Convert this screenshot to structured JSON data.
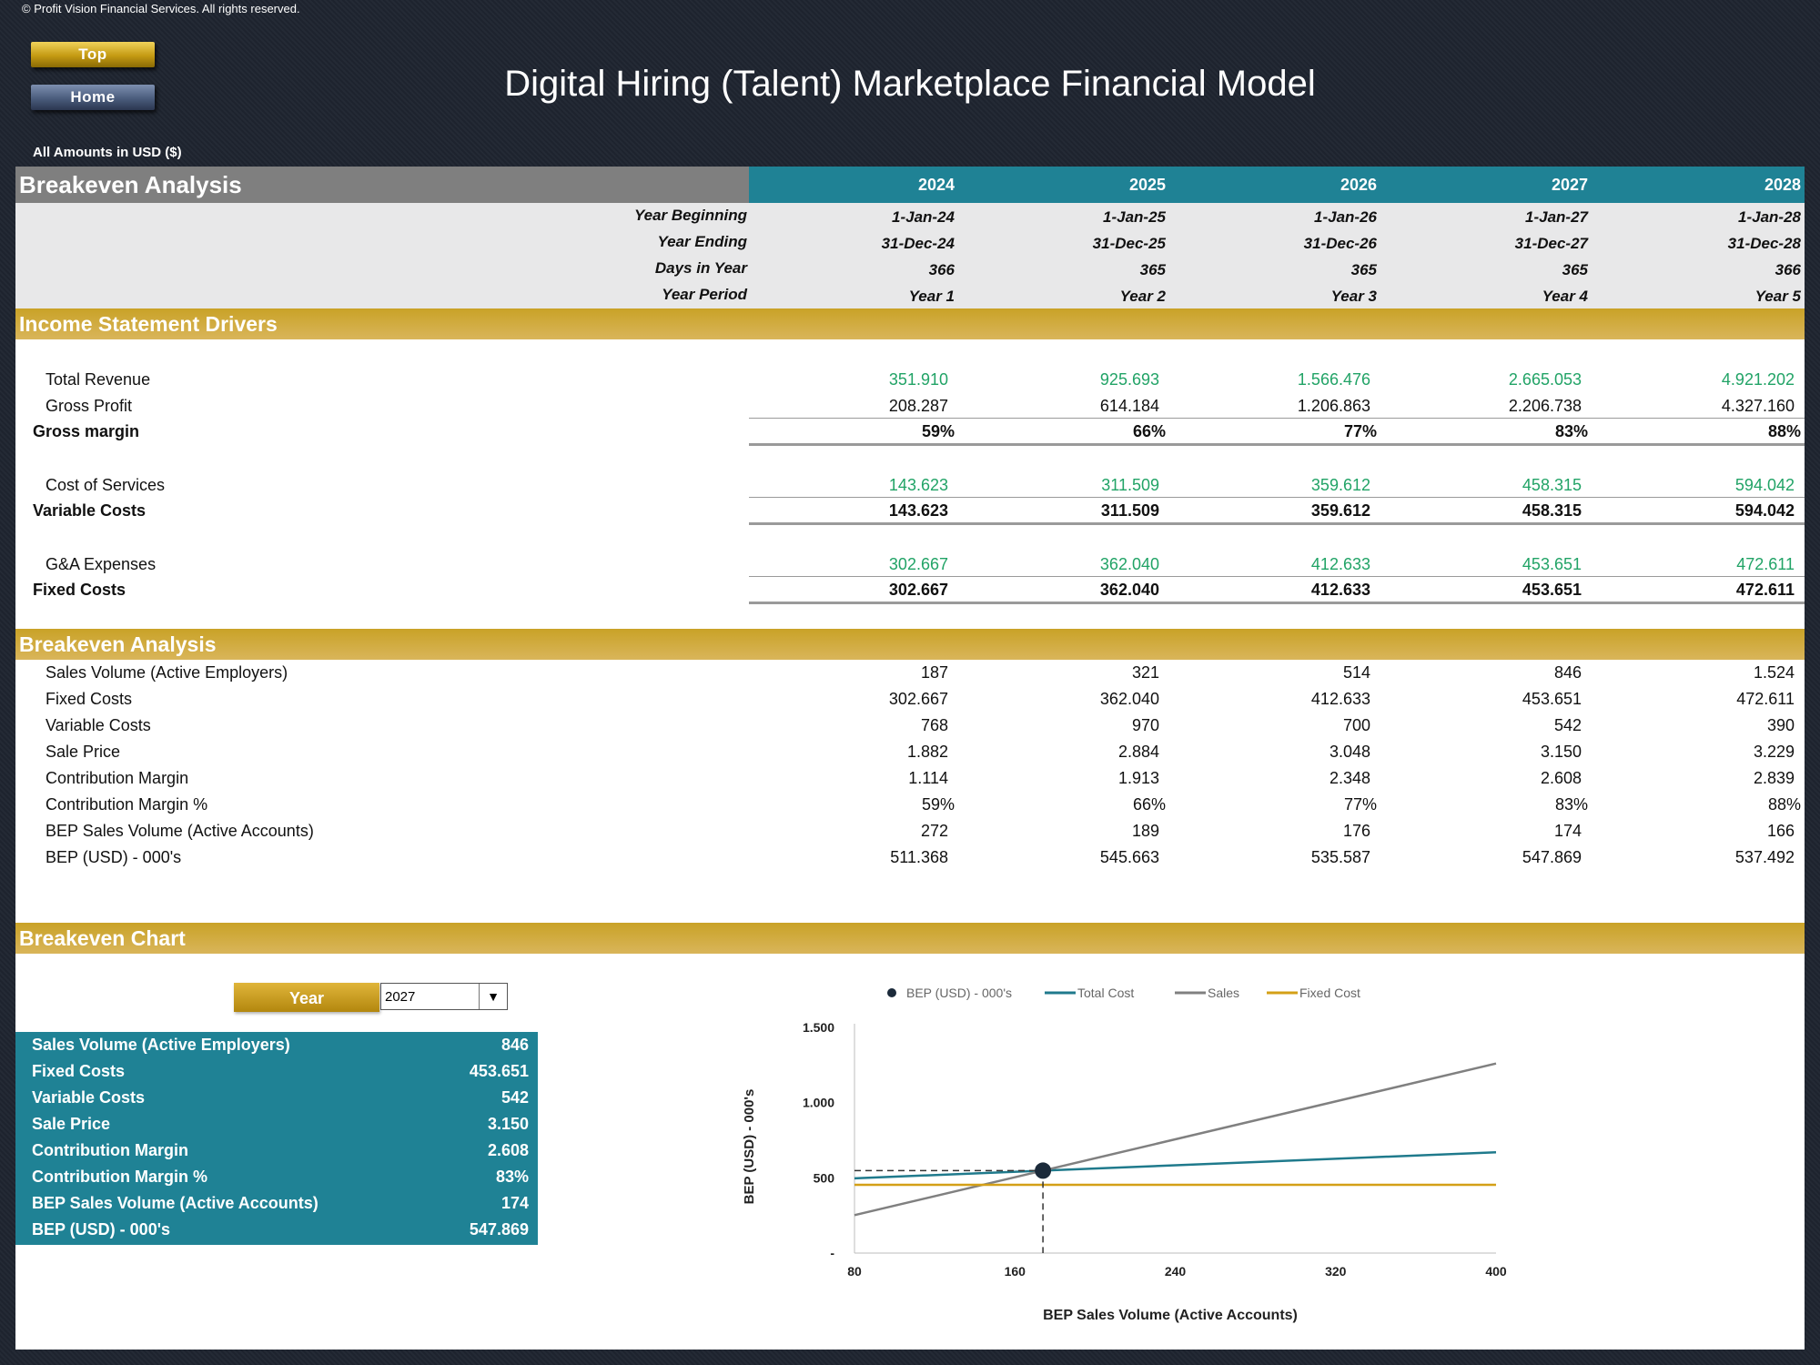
{
  "copyright": "© Profit Vision Financial Services. All rights reserved.",
  "nav": {
    "top_label": "Top",
    "home_label": "Home"
  },
  "title": "Digital Hiring (Talent) Marketplace Financial Model",
  "amounts_note": "All Amounts in  USD ($)",
  "header": {
    "section_title": "Breakeven Analysis",
    "years": [
      "2024",
      "2025",
      "2026",
      "2027",
      "2028"
    ]
  },
  "timeline": {
    "labels": [
      "Year Beginning",
      "Year Ending",
      "Days in Year",
      "Year Period"
    ],
    "year_beginning": [
      "1-Jan-24",
      "1-Jan-25",
      "1-Jan-26",
      "1-Jan-27",
      "1-Jan-28"
    ],
    "year_ending": [
      "31-Dec-24",
      "31-Dec-25",
      "31-Dec-26",
      "31-Dec-27",
      "31-Dec-28"
    ],
    "days_in_year": [
      "366",
      "365",
      "365",
      "365",
      "366"
    ],
    "year_period": [
      "Year 1",
      "Year 2",
      "Year 3",
      "Year 4",
      "Year 5"
    ]
  },
  "income_drivers": {
    "title": "Income Statement Drivers",
    "total_revenue": {
      "label": "Total Revenue",
      "values": [
        "351.910",
        "925.693",
        "1.566.476",
        "2.665.053",
        "4.921.202"
      ]
    },
    "gross_profit": {
      "label": "Gross Profit",
      "values": [
        "208.287",
        "614.184",
        "1.206.863",
        "2.206.738",
        "4.327.160"
      ]
    },
    "gross_margin": {
      "label": "Gross margin",
      "values": [
        "59%",
        "66%",
        "77%",
        "83%",
        "88%"
      ]
    },
    "cost_of_services": {
      "label": "Cost of Services",
      "values": [
        "143.623",
        "311.509",
        "359.612",
        "458.315",
        "594.042"
      ]
    },
    "variable_costs": {
      "label": "Variable Costs",
      "values": [
        "143.623",
        "311.509",
        "359.612",
        "458.315",
        "594.042"
      ]
    },
    "ga_expenses": {
      "label": "G&A Expenses",
      "values": [
        "302.667",
        "362.040",
        "412.633",
        "453.651",
        "472.611"
      ]
    },
    "fixed_costs": {
      "label": "Fixed Costs",
      "values": [
        "302.667",
        "362.040",
        "412.633",
        "453.651",
        "472.611"
      ]
    }
  },
  "breakeven": {
    "title": "Breakeven Analysis",
    "rows": [
      {
        "label": "Sales Volume (Active Employers)",
        "values": [
          "187",
          "321",
          "514",
          "846",
          "1.524"
        ]
      },
      {
        "label": "Fixed Costs",
        "values": [
          "302.667",
          "362.040",
          "412.633",
          "453.651",
          "472.611"
        ]
      },
      {
        "label": "Variable Costs",
        "values": [
          "768",
          "970",
          "700",
          "542",
          "390"
        ]
      },
      {
        "label": "Sale Price",
        "values": [
          "1.882",
          "2.884",
          "3.048",
          "3.150",
          "3.229"
        ]
      },
      {
        "label": "Contribution Margin",
        "values": [
          "1.114",
          "1.913",
          "2.348",
          "2.608",
          "2.839"
        ]
      },
      {
        "label": "Contribution Margin %",
        "values": [
          "59%",
          "66%",
          "77%",
          "83%",
          "88%"
        ]
      },
      {
        "label": "BEP Sales Volume (Active Accounts)",
        "values": [
          "272",
          "189",
          "176",
          "174",
          "166"
        ]
      },
      {
        "label": "BEP (USD) - 000's",
        "values": [
          "511.368",
          "545.663",
          "535.587",
          "547.869",
          "537.492"
        ]
      }
    ]
  },
  "chart_section": {
    "title": "Breakeven Chart",
    "year_button": "Year",
    "selected_year": "2027",
    "summary": [
      {
        "label": "Sales Volume (Active Employers)",
        "value": "846"
      },
      {
        "label": "Fixed Costs",
        "value": "453.651"
      },
      {
        "label": "Variable Costs",
        "value": "542"
      },
      {
        "label": "Sale Price",
        "value": "3.150"
      },
      {
        "label": "Contribution Margin",
        "value": "2.608"
      },
      {
        "label": "Contribution Margin %",
        "value": "83%"
      },
      {
        "label": "BEP Sales Volume (Active Accounts)",
        "value": "174"
      },
      {
        "label": "BEP (USD) - 000's",
        "value": "547.869"
      }
    ]
  },
  "chart_data": {
    "type": "line",
    "xlabel": "BEP Sales Volume (Active Accounts)",
    "ylabel": "BEP (USD) - 000's",
    "xlim": [
      80,
      400
    ],
    "ylim": [
      0,
      1500
    ],
    "x_ticks": [
      "80",
      "160",
      "240",
      "320",
      "400"
    ],
    "y_ticks": [
      "-",
      "500",
      "1.000",
      "1.500"
    ],
    "legend_position": "top",
    "series": [
      {
        "name": "BEP (USD) - 000's",
        "kind": "point",
        "color": "#1b2a3a",
        "points": [
          [
            174,
            548
          ]
        ]
      },
      {
        "name": "Total Cost",
        "color": "#1f7a8c",
        "points": [
          [
            80,
            497
          ],
          [
            400,
            670
          ]
        ]
      },
      {
        "name": "Sales",
        "color": "#808080",
        "points": [
          [
            80,
            252
          ],
          [
            400,
            1260
          ]
        ]
      },
      {
        "name": "Fixed Cost",
        "color": "#d4a017",
        "points": [
          [
            80,
            454
          ],
          [
            400,
            454
          ]
        ]
      }
    ]
  }
}
